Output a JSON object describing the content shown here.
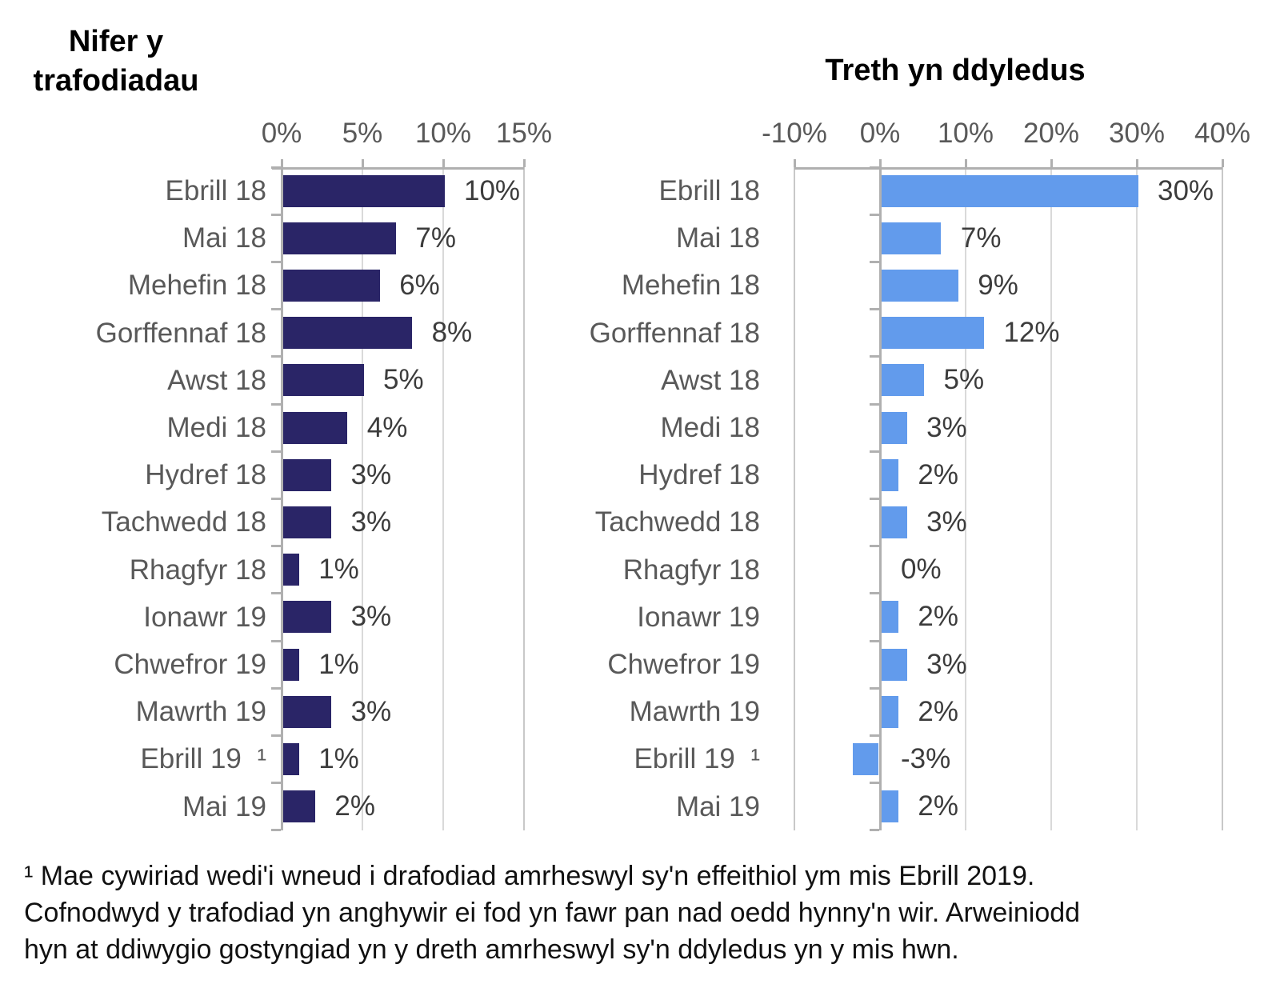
{
  "chart_data": [
    {
      "type": "bar",
      "orientation": "horizontal",
      "title": "Nifer y trafodiadau",
      "title_lines": [
        "Nifer y",
        "trafodiadau"
      ],
      "categories": [
        "Ebrill 18",
        "Mai 18",
        "Mehefin 18",
        "Gorffennaf 18",
        "Awst 18",
        "Medi 18",
        "Hydref 18",
        "Tachwedd 18",
        "Rhagfyr 18",
        "Ionawr 19",
        "Chwefror 19",
        "Mawrth 19",
        "Ebrill 19  ¹",
        "Mai 19"
      ],
      "values": [
        10,
        7,
        6,
        8,
        5,
        4,
        3,
        3,
        1,
        3,
        1,
        3,
        1,
        2
      ],
      "value_labels": [
        "10%",
        "7%",
        "6%",
        "8%",
        "5%",
        "4%",
        "3%",
        "3%",
        "1%",
        "3%",
        "1%",
        "3%",
        "1%",
        "2%"
      ],
      "xlim": [
        0,
        15
      ],
      "x_tick_values": [
        0,
        5,
        10,
        15
      ],
      "x_tick_labels": [
        "0%",
        "5%",
        "10%",
        "15%"
      ],
      "gridline_values": [
        5,
        10
      ],
      "border_values": [
        15
      ],
      "axis_value": 0,
      "grid": true,
      "legend": "none",
      "bar_color": "#2a2567"
    },
    {
      "type": "bar",
      "orientation": "horizontal",
      "title": "Treth yn ddyledus",
      "title_lines": [
        "Treth yn ddyledus"
      ],
      "categories": [
        "Ebrill 18",
        "Mai 18",
        "Mehefin 18",
        "Gorffennaf 18",
        "Awst 18",
        "Medi 18",
        "Hydref 18",
        "Tachwedd 18",
        "Rhagfyr 18",
        "Ionawr 19",
        "Chwefror 19",
        "Mawrth 19",
        "Ebrill 19  ¹",
        "Mai 19"
      ],
      "values": [
        30,
        7,
        9,
        12,
        5,
        3,
        2,
        3,
        0,
        2,
        3,
        2,
        -3,
        2
      ],
      "value_labels": [
        "30%",
        "7%",
        "9%",
        "12%",
        "5%",
        "3%",
        "2%",
        "3%",
        "0%",
        "2%",
        "3%",
        "2%",
        "-3%",
        "2%"
      ],
      "xlim": [
        -10,
        40
      ],
      "x_tick_values": [
        -10,
        0,
        10,
        20,
        30,
        40
      ],
      "x_tick_labels": [
        "-10%",
        "0%",
        "10%",
        "20%",
        "30%",
        "40%"
      ],
      "gridline_values": [
        10,
        20,
        30
      ],
      "border_values": [
        -10,
        40
      ],
      "axis_value": 0,
      "grid": true,
      "legend": "none",
      "bar_color": "#629bec"
    }
  ],
  "footnote": {
    "lines": [
      "¹ Mae cywiriad wedi'i wneud i drafodiad amrheswyl sy'n effeithiol ym mis Ebrill 2019.",
      "Cofnodwyd y trafodiad yn anghywir ei fod yn fawr pan nad oedd hynny'n wir. Arweiniodd",
      "hyn at ddiwygio gostyngiad yn y dreth amrheswyl sy'n ddyledus yn y mis hwn."
    ]
  },
  "colors": {
    "transactions_bar": "#2a2567",
    "tax_due_bar": "#629bec",
    "axis_line": "#b0b0b0",
    "gridline": "#d9d9d9",
    "category_label": "#595959",
    "value_label": "#3c3c3c",
    "title_text": "#000000"
  }
}
